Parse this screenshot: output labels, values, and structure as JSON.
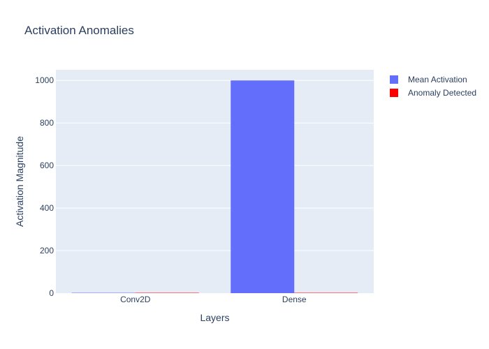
{
  "chart_data": {
    "type": "bar",
    "title": "Activation Anomalies",
    "xlabel": "Layers",
    "ylabel": "Activation Magnitude",
    "categories": [
      "Conv2D",
      "Dense"
    ],
    "series": [
      {
        "name": "Mean Activation",
        "values": [
          0.5,
          1000
        ],
        "color": "#636efa"
      },
      {
        "name": "Anomaly Detected",
        "values": [
          0,
          0
        ],
        "color": "#ff0000"
      }
    ],
    "ylim": [
      0,
      1050
    ],
    "yticks": [
      0,
      200,
      400,
      600,
      800,
      1000
    ],
    "grid": true,
    "legend_position": "top-right",
    "background_color": "#e5ecf6"
  }
}
